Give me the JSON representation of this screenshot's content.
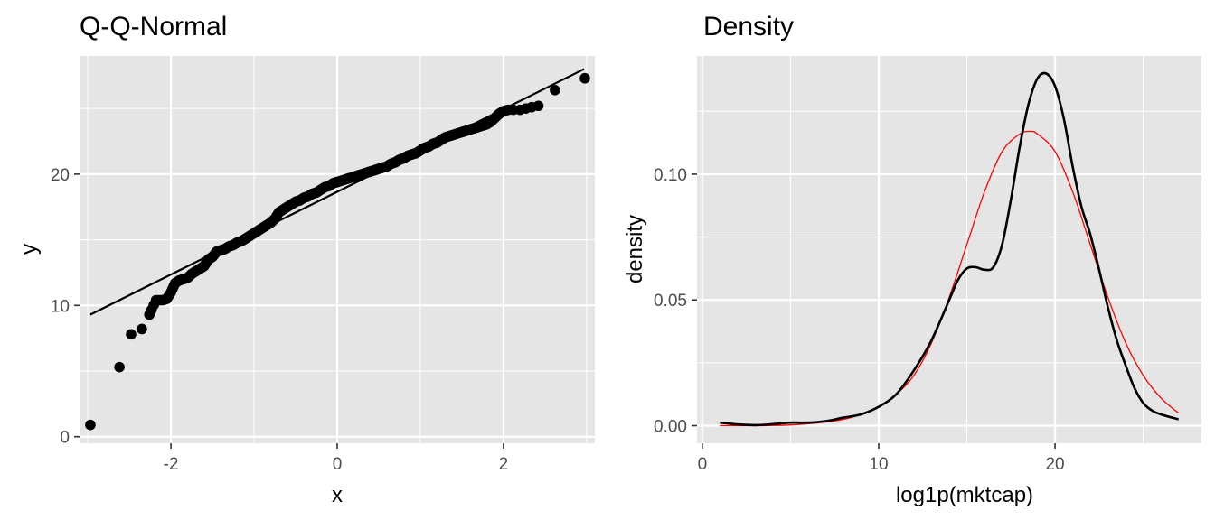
{
  "chart_data": [
    {
      "type": "scatter",
      "title": "Q-Q-Normal",
      "xlabel": "x",
      "ylabel": "y",
      "xlim": [
        -3.1,
        3.1
      ],
      "ylim": [
        -0.5,
        29.0
      ],
      "xticks": [
        -2,
        0,
        2
      ],
      "xtick_labels": [
        "-2",
        "0",
        "2"
      ],
      "yticks": [
        0,
        10,
        20
      ],
      "ytick_labels": [
        "0",
        "10",
        "20"
      ],
      "grid": true,
      "legend": "none",
      "point_color": "#000000",
      "panel_color": "#e5e5e5",
      "reference_line": {
        "x": [
          -2.97,
          2.97
        ],
        "y": [
          9.3,
          28.0
        ],
        "color": "#000000"
      },
      "points": {
        "x": [
          -2.97,
          -2.62,
          -2.48,
          -2.35,
          -2.26,
          -2.18,
          -2.1,
          -2.05,
          -2.0,
          -1.95,
          -1.9,
          -1.85,
          -1.8,
          -1.75,
          -1.7,
          -1.65,
          -1.6,
          -1.55,
          -1.5,
          -1.45,
          -1.4,
          -1.35,
          -1.3,
          -1.25,
          -1.2,
          -1.15,
          -1.1,
          -1.05,
          -1.0,
          -0.95,
          -0.9,
          -0.85,
          -0.8,
          -0.75,
          -0.7,
          -0.65,
          -0.6,
          -0.55,
          -0.5,
          -0.45,
          -0.4,
          -0.35,
          -0.3,
          -0.25,
          -0.2,
          -0.15,
          -0.1,
          -0.05,
          0.0,
          0.05,
          0.1,
          0.15,
          0.2,
          0.25,
          0.3,
          0.35,
          0.4,
          0.45,
          0.5,
          0.55,
          0.6,
          0.65,
          0.7,
          0.75,
          0.8,
          0.85,
          0.9,
          0.95,
          1.0,
          1.05,
          1.1,
          1.15,
          1.2,
          1.25,
          1.3,
          1.35,
          1.4,
          1.45,
          1.5,
          1.55,
          1.6,
          1.65,
          1.7,
          1.75,
          1.8,
          1.85,
          1.9,
          1.95,
          2.0,
          2.06,
          2.12,
          2.2,
          2.27,
          2.34,
          2.42,
          2.62,
          2.98
        ],
        "y": [
          0.9,
          5.3,
          7.8,
          8.2,
          9.3,
          10.4,
          10.4,
          10.5,
          11.0,
          11.7,
          11.9,
          12.0,
          12.1,
          12.4,
          12.6,
          12.8,
          13.0,
          13.5,
          13.7,
          14.1,
          14.2,
          14.3,
          14.5,
          14.6,
          14.8,
          14.9,
          15.1,
          15.3,
          15.5,
          15.7,
          15.9,
          16.1,
          16.3,
          16.6,
          17.1,
          17.3,
          17.5,
          17.7,
          17.9,
          18.0,
          18.2,
          18.3,
          18.5,
          18.6,
          18.8,
          19.0,
          19.1,
          19.3,
          19.4,
          19.5,
          19.6,
          19.7,
          19.8,
          19.9,
          20.0,
          20.1,
          20.2,
          20.3,
          20.4,
          20.5,
          20.6,
          20.8,
          20.9,
          21.1,
          21.2,
          21.4,
          21.5,
          21.6,
          21.8,
          22.0,
          22.1,
          22.3,
          22.4,
          22.6,
          22.8,
          22.9,
          23.0,
          23.1,
          23.2,
          23.3,
          23.4,
          23.5,
          23.6,
          23.7,
          23.8,
          24.0,
          24.3,
          24.6,
          24.8,
          24.9,
          24.9,
          24.9,
          25.0,
          25.1,
          25.2,
          26.4,
          27.3
        ]
      }
    },
    {
      "type": "line",
      "title": "Density",
      "xlabel": "log1p(mktcap)",
      "ylabel": "density",
      "xlim": [
        -0.3,
        28.3
      ],
      "ylim": [
        -0.007,
        0.147
      ],
      "xticks": [
        0,
        10,
        20
      ],
      "xtick_labels": [
        "0",
        "10",
        "20"
      ],
      "yticks": [
        0.0,
        0.05,
        0.1
      ],
      "ytick_labels": [
        "0.00",
        "0.05",
        "0.10"
      ],
      "grid": true,
      "legend": "none",
      "panel_color": "#e5e5e5",
      "series": [
        {
          "color": "#000000",
          "x": [
            1.0,
            2.0,
            3.0,
            4.0,
            5.0,
            6.0,
            7.0,
            8.0,
            9.0,
            10.0,
            11.0,
            12.0,
            13.0,
            14.0,
            14.5,
            15.0,
            15.5,
            16.0,
            16.5,
            17.0,
            17.5,
            18.0,
            18.5,
            19.0,
            19.5,
            20.0,
            20.5,
            21.0,
            21.5,
            22.0,
            22.5,
            23.0,
            23.5,
            24.0,
            24.5,
            25.0,
            25.5,
            26.0,
            27.0
          ],
          "y": [
            0.0012,
            0.0005,
            0.0002,
            0.0006,
            0.0012,
            0.0012,
            0.0018,
            0.0032,
            0.0045,
            0.0075,
            0.0125,
            0.022,
            0.034,
            0.05,
            0.058,
            0.0625,
            0.063,
            0.062,
            0.063,
            0.072,
            0.09,
            0.111,
            0.128,
            0.138,
            0.14,
            0.135,
            0.122,
            0.103,
            0.087,
            0.076,
            0.062,
            0.047,
            0.034,
            0.024,
            0.015,
            0.009,
            0.006,
            0.0045,
            0.0025
          ]
        },
        {
          "color": "#ff0000",
          "x": [
            1.0,
            5.0,
            8.0,
            10.0,
            11.0,
            12.0,
            13.0,
            14.0,
            15.0,
            16.0,
            17.0,
            18.0,
            18.6,
            19.0,
            20.0,
            21.0,
            22.0,
            23.0,
            24.0,
            25.0,
            26.0,
            27.0
          ],
          "y": [
            0.0,
            0.0003,
            0.0025,
            0.0075,
            0.0125,
            0.02,
            0.033,
            0.051,
            0.072,
            0.093,
            0.109,
            0.116,
            0.117,
            0.116,
            0.109,
            0.093,
            0.072,
            0.051,
            0.033,
            0.02,
            0.011,
            0.005
          ]
        }
      ]
    }
  ]
}
